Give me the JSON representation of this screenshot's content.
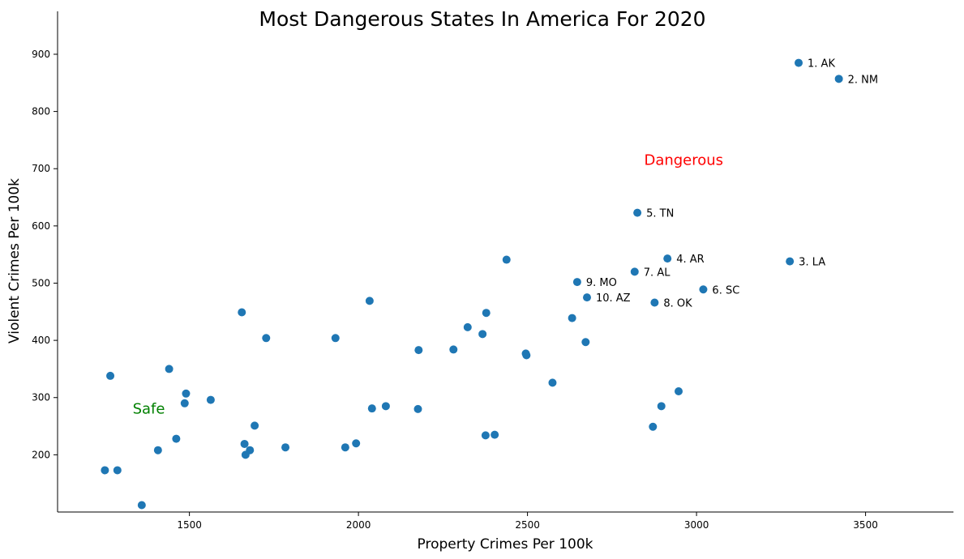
{
  "chart_data": {
    "type": "scatter",
    "title": "Most Dangerous States In America For 2020",
    "xlabel": "Property Crimes Per 100k",
    "ylabel": "Violent Crimes Per 100k",
    "xlim": [
      1110,
      3760
    ],
    "ylim": [
      100,
      975
    ],
    "xticks": [
      1500,
      2000,
      2500,
      3000,
      3500
    ],
    "yticks": [
      200,
      300,
      400,
      500,
      600,
      700,
      800,
      900
    ],
    "grid": false,
    "marker_color": "#1f77b4",
    "points": [
      {
        "x": 3302,
        "y": 885,
        "label": "1. AK"
      },
      {
        "x": 3421,
        "y": 857,
        "label": "2. NM"
      },
      {
        "x": 3276,
        "y": 538,
        "label": "3. LA"
      },
      {
        "x": 2914,
        "y": 543,
        "label": "4. AR"
      },
      {
        "x": 2825,
        "y": 623,
        "label": "5. TN"
      },
      {
        "x": 3020,
        "y": 489,
        "label": "6. SC"
      },
      {
        "x": 2817,
        "y": 520,
        "label": "7. AL"
      },
      {
        "x": 2876,
        "y": 466,
        "label": "8. OK"
      },
      {
        "x": 2647,
        "y": 502,
        "label": "9. MO"
      },
      {
        "x": 2676,
        "y": 475,
        "label": "10. AZ"
      },
      {
        "x": 2438,
        "y": 541
      },
      {
        "x": 2033,
        "y": 469
      },
      {
        "x": 1655,
        "y": 449
      },
      {
        "x": 2378,
        "y": 448
      },
      {
        "x": 2632,
        "y": 439
      },
      {
        "x": 2323,
        "y": 423
      },
      {
        "x": 2367,
        "y": 411
      },
      {
        "x": 1727,
        "y": 404
      },
      {
        "x": 1932,
        "y": 404
      },
      {
        "x": 2672,
        "y": 397
      },
      {
        "x": 2178,
        "y": 383
      },
      {
        "x": 2281,
        "y": 384
      },
      {
        "x": 2495,
        "y": 377
      },
      {
        "x": 2497,
        "y": 374
      },
      {
        "x": 1440,
        "y": 350
      },
      {
        "x": 1266,
        "y": 338
      },
      {
        "x": 2574,
        "y": 326
      },
      {
        "x": 2947,
        "y": 311
      },
      {
        "x": 1490,
        "y": 307
      },
      {
        "x": 1486,
        "y": 290
      },
      {
        "x": 1563,
        "y": 296
      },
      {
        "x": 2896,
        "y": 285
      },
      {
        "x": 2081,
        "y": 285
      },
      {
        "x": 2040,
        "y": 281
      },
      {
        "x": 2176,
        "y": 280
      },
      {
        "x": 1693,
        "y": 251
      },
      {
        "x": 2871,
        "y": 249
      },
      {
        "x": 2403,
        "y": 235
      },
      {
        "x": 2376,
        "y": 234
      },
      {
        "x": 1461,
        "y": 228
      },
      {
        "x": 1993,
        "y": 220
      },
      {
        "x": 1663,
        "y": 219
      },
      {
        "x": 1961,
        "y": 213
      },
      {
        "x": 1784,
        "y": 213
      },
      {
        "x": 1679,
        "y": 208
      },
      {
        "x": 1407,
        "y": 208
      },
      {
        "x": 1666,
        "y": 200
      },
      {
        "x": 1250,
        "y": 173
      },
      {
        "x": 1287,
        "y": 173
      },
      {
        "x": 1359,
        "y": 112
      }
    ],
    "annotations": [
      {
        "text": "Dangerous",
        "x": 2845,
        "y": 707,
        "color": "#ff0000"
      },
      {
        "text": "Safe",
        "x": 1332,
        "y": 272,
        "color": "#008000"
      }
    ]
  }
}
